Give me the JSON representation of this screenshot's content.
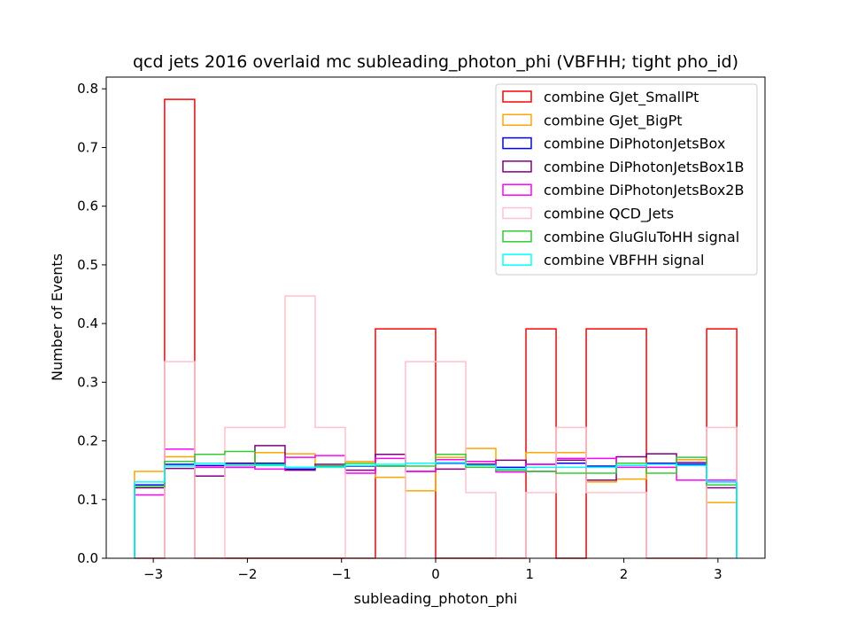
{
  "chart_data": {
    "type": "histogram",
    "title": "qcd jets 2016 overlaid mc subleading_photon_phi (VBFHH; tight pho_id)",
    "xlabel": "subleading_photon_phi",
    "ylabel": "Number of Events",
    "xlim": [
      -3.5,
      3.5
    ],
    "ylim": [
      0,
      0.82
    ],
    "xticks": [
      -3,
      -2,
      -1,
      0,
      1,
      2,
      3
    ],
    "xtick_labels": [
      "−3",
      "−2",
      "−1",
      "0",
      "1",
      "2",
      "3"
    ],
    "yticks": [
      0.0,
      0.1,
      0.2,
      0.3,
      0.4,
      0.5,
      0.6,
      0.7,
      0.8
    ],
    "ytick_labels": [
      "0.0",
      "0.1",
      "0.2",
      "0.3",
      "0.4",
      "0.5",
      "0.6",
      "0.7",
      "0.8"
    ],
    "bin_edges": [
      -3.2,
      -2.88,
      -2.56,
      -2.24,
      -1.92,
      -1.6,
      -1.28,
      -0.96,
      -0.64,
      -0.32,
      0.0,
      0.32,
      0.64,
      0.96,
      1.28,
      1.6,
      1.92,
      2.24,
      2.56,
      2.88,
      3.2
    ],
    "legend_position": "upper right",
    "series": [
      {
        "name": "combine GJet_SmallPt",
        "color": "#ff0000",
        "values": [
          0,
          0.782,
          0,
          0,
          0,
          0,
          0,
          0,
          0.391,
          0.391,
          0,
          0,
          0,
          0.391,
          0,
          0.391,
          0.391,
          0,
          0,
          0.391
        ]
      },
      {
        "name": "combine GJet_BigPt",
        "color": "#ffa500",
        "values": [
          0.148,
          0.173,
          0.155,
          0.16,
          0.18,
          0.178,
          0.155,
          0.165,
          0.138,
          0.115,
          0.172,
          0.187,
          0.15,
          0.18,
          0.18,
          0.13,
          0.135,
          0.155,
          0.168,
          0.095
        ]
      },
      {
        "name": "combine DiPhotonJetsBox",
        "color": "#0000ff",
        "values": [
          0.125,
          0.16,
          0.158,
          0.162,
          0.162,
          0.152,
          0.157,
          0.157,
          0.157,
          0.162,
          0.162,
          0.16,
          0.155,
          0.16,
          0.162,
          0.157,
          0.162,
          0.162,
          0.16,
          0.13
        ]
      },
      {
        "name": "combine DiPhotonJetsBox1B",
        "color": "#800080",
        "values": [
          0.12,
          0.153,
          0.14,
          0.155,
          0.192,
          0.15,
          0.16,
          0.15,
          0.177,
          0.148,
          0.152,
          0.16,
          0.167,
          0.148,
          0.167,
          0.133,
          0.173,
          0.178,
          0.163,
          0.12
        ]
      },
      {
        "name": "combine DiPhotonJetsBox2B",
        "color": "#ff00ff",
        "values": [
          0.108,
          0.186,
          0.155,
          0.155,
          0.152,
          0.172,
          0.175,
          0.145,
          0.17,
          0.148,
          0.168,
          0.165,
          0.147,
          0.16,
          0.17,
          0.17,
          0.155,
          0.155,
          0.133,
          0.133
        ]
      },
      {
        "name": "combine QCD_Jets",
        "color": "#ffc0cb",
        "values": [
          0,
          0.335,
          0,
          0.223,
          0.223,
          0.447,
          0.223,
          0,
          0,
          0.335,
          0.335,
          0.112,
          0,
          0.112,
          0.223,
          0.112,
          0.112,
          0,
          0,
          0.223
        ]
      },
      {
        "name": "combine GluGluToHH signal",
        "color": "#32cd32",
        "values": [
          0.122,
          0.165,
          0.177,
          0.182,
          0.16,
          0.155,
          0.157,
          0.162,
          0.157,
          0.157,
          0.177,
          0.155,
          0.15,
          0.148,
          0.145,
          0.145,
          0.162,
          0.145,
          0.172,
          0.125
        ]
      },
      {
        "name": "combine VBFHH signal",
        "color": "#00ffff",
        "values": [
          0.13,
          0.157,
          0.162,
          0.158,
          0.158,
          0.155,
          0.155,
          0.158,
          0.16,
          0.162,
          0.163,
          0.158,
          0.152,
          0.155,
          0.155,
          0.155,
          0.158,
          0.16,
          0.158,
          0.13
        ]
      }
    ]
  }
}
